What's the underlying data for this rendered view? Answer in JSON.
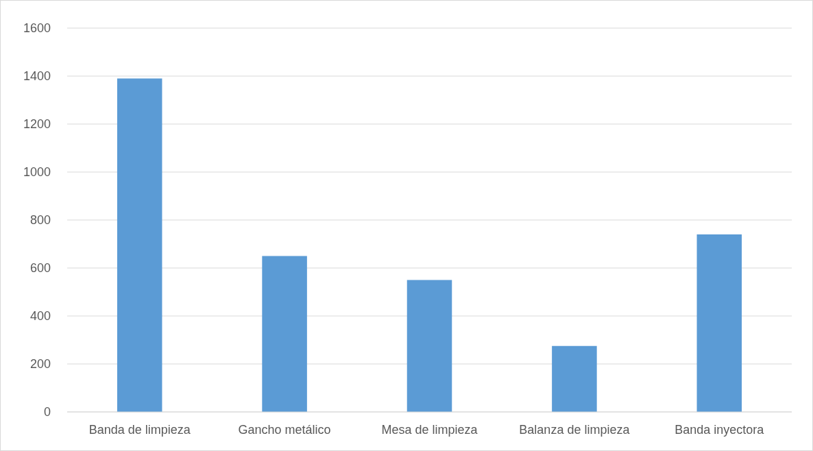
{
  "chart_data": {
    "type": "bar",
    "categories": [
      "Banda de limpieza",
      "Gancho metálico",
      "Mesa de limpieza",
      "Balanza de limpieza",
      "Banda inyectora"
    ],
    "values": [
      1390,
      650,
      550,
      275,
      740
    ],
    "color": "#5b9bd5",
    "ylim": [
      0,
      1600
    ],
    "yticks": [
      0,
      200,
      400,
      600,
      800,
      1000,
      1200,
      1400,
      1600
    ],
    "grid": "y"
  }
}
